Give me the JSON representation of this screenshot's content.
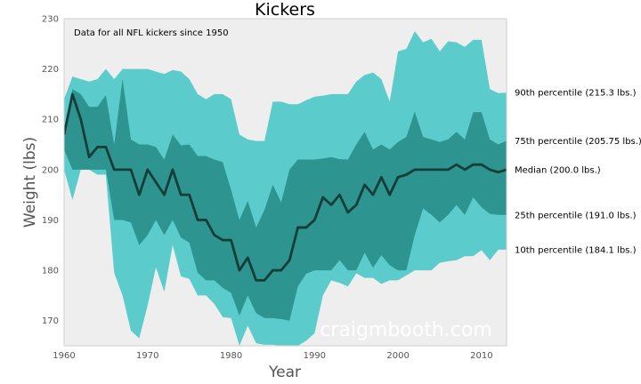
{
  "chart_data": {
    "type": "area",
    "title": "Kickers",
    "xlabel": "Year",
    "ylabel": "Weight (lbs)",
    "annotation": "Data for all NFL kickers since 1950",
    "watermark": "craigmbooth.com",
    "xlim": [
      1960,
      2013
    ],
    "ylim": [
      165,
      230
    ],
    "x_ticks": [
      1960,
      1970,
      1980,
      1990,
      2000,
      2010
    ],
    "y_ticks": [
      170,
      180,
      190,
      200,
      210,
      220,
      230
    ],
    "grid": false,
    "colors": {
      "background": "#eeeeee",
      "outer_band": "#5ccbcb",
      "inner_band": "#2e9490",
      "median": "#153d3a"
    },
    "x": [
      1960,
      1961,
      1962,
      1963,
      1964,
      1965,
      1966,
      1967,
      1968,
      1969,
      1970,
      1971,
      1972,
      1973,
      1974,
      1975,
      1976,
      1977,
      1978,
      1979,
      1980,
      1981,
      1982,
      1983,
      1984,
      1985,
      1986,
      1987,
      1988,
      1989,
      1990,
      1991,
      1992,
      1993,
      1994,
      1995,
      1996,
      1997,
      1998,
      1999,
      2000,
      2001,
      2002,
      2003,
      2004,
      2005,
      2006,
      2007,
      2008,
      2009,
      2010,
      2011,
      2012,
      2013
    ],
    "series": [
      {
        "name": "90th percentile",
        "label": "90th percentile (215.3 lbs.)",
        "values": [
          214,
          218.5,
          218,
          217.5,
          218,
          220,
          218,
          220,
          220,
          220,
          220,
          219.5,
          219,
          219.8,
          219.5,
          218,
          215,
          214,
          215,
          215,
          214,
          207,
          206,
          205.7,
          205.7,
          213.5,
          213.5,
          213,
          213,
          213.8,
          214.5,
          214.7,
          215,
          215,
          215,
          217.5,
          218.8,
          219.3,
          218,
          213.5,
          223.5,
          224,
          227.5,
          225.3,
          226,
          223.5,
          225.5,
          225.3,
          224.4,
          225.8,
          225.8,
          216,
          215.2,
          215.3
        ]
      },
      {
        "name": "75th percentile",
        "label": "75th percentile (205.75 lbs.)",
        "values": [
          208,
          216,
          215,
          212.5,
          212.5,
          214.8,
          205,
          218,
          206,
          205,
          205,
          204.5,
          202,
          207,
          204.8,
          205,
          202.7,
          202.7,
          202,
          201.5,
          196,
          190,
          193.8,
          188.5,
          192,
          197,
          193.5,
          200,
          202,
          202,
          202,
          202.2,
          202.5,
          202.1,
          202,
          205,
          207.5,
          204,
          205,
          204,
          205.5,
          206.5,
          211.5,
          206.5,
          206,
          205.5,
          206,
          207.5,
          206,
          211.4,
          211.4,
          206,
          205,
          205.75
        ]
      },
      {
        "name": "Median",
        "label": "Median (200.0 lbs.)",
        "values": [
          207,
          215,
          210,
          202.5,
          204.5,
          204.5,
          200,
          200,
          200,
          195,
          200,
          197.5,
          195,
          200,
          195,
          195,
          190,
          190,
          187,
          186,
          186,
          180,
          182.5,
          178,
          178,
          180,
          180,
          182,
          188.5,
          188.5,
          190,
          194.5,
          193,
          195,
          191.5,
          193,
          197,
          195,
          198.5,
          195,
          198.5,
          199,
          200,
          200,
          200,
          200,
          200,
          201,
          200,
          201,
          201,
          200,
          199.5,
          200
        ]
      },
      {
        "name": "25th percentile",
        "label": "25th percentile (191.0 lbs.)",
        "values": [
          204,
          200,
          200,
          200,
          200,
          200,
          190,
          190,
          189.5,
          185,
          187,
          190,
          187,
          190,
          186.5,
          185.5,
          179.5,
          178,
          178,
          176.5,
          175.5,
          171,
          175,
          171.5,
          170.5,
          170.5,
          170.3,
          170,
          176.8,
          179.3,
          180,
          180,
          180,
          182,
          180,
          180,
          183.5,
          180.5,
          183,
          181,
          180,
          180,
          187,
          192.3,
          191,
          189.5,
          191,
          193,
          191,
          194.5,
          192.5,
          191.2,
          191,
          191
        ]
      },
      {
        "name": "10th percentile",
        "label": "10th percentile (184.1 lbs.)",
        "values": [
          200,
          194,
          200,
          200,
          199,
          199,
          179.5,
          175,
          168,
          166.5,
          173,
          180.6,
          175.7,
          185,
          178.8,
          178.3,
          175,
          175,
          173.3,
          170.7,
          170.5,
          165,
          169,
          165.5,
          165.2,
          165.2,
          165,
          165,
          165,
          166,
          167.5,
          175,
          178,
          177.5,
          176.8,
          179.4,
          178.5,
          178.5,
          177.3,
          178,
          178,
          179,
          180,
          180,
          180,
          181.5,
          181.8,
          182,
          182.8,
          182.8,
          184,
          182,
          184.1,
          184.1
        ]
      }
    ]
  }
}
